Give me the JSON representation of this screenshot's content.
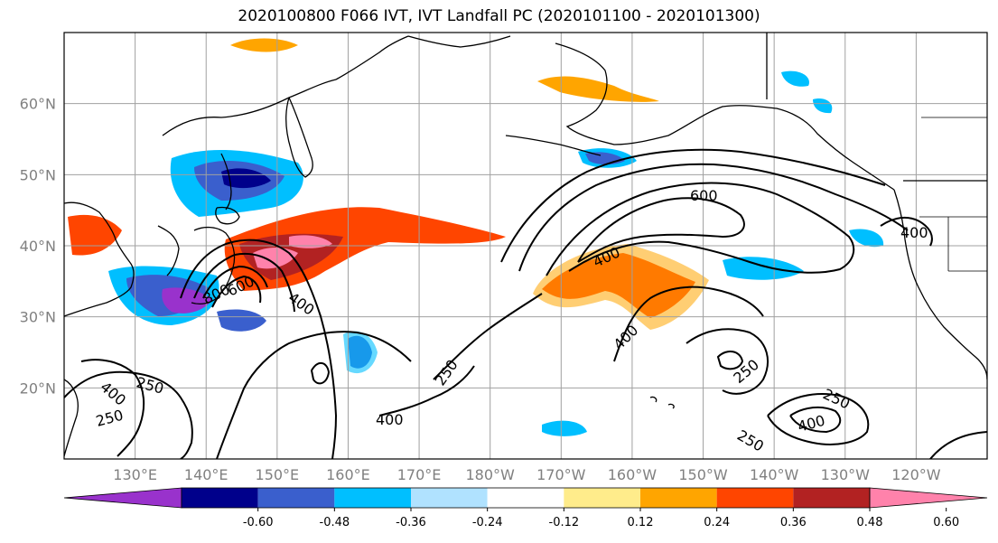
{
  "title": "2020100800 F066 IVT, IVT Landfall PC (2020101100 - 2020101300)",
  "map": {
    "lat_ticks": [
      {
        "label": "60°N",
        "lat": 60
      },
      {
        "label": "50°N",
        "lat": 50
      },
      {
        "label": "40°N",
        "lat": 40
      },
      {
        "label": "30°N",
        "lat": 30
      },
      {
        "label": "20°N",
        "lat": 20
      }
    ],
    "lon_ticks": [
      {
        "label": "130°E",
        "lon": 130
      },
      {
        "label": "140°E",
        "lon": 140
      },
      {
        "label": "150°E",
        "lon": 150
      },
      {
        "label": "160°E",
        "lon": 160
      },
      {
        "label": "170°E",
        "lon": 170
      },
      {
        "label": "180°W",
        "lon": 180
      },
      {
        "label": "170°W",
        "lon": 190
      },
      {
        "label": "160°W",
        "lon": 200
      },
      {
        "label": "150°W",
        "lon": 210
      },
      {
        "label": "140°W",
        "lon": 220
      },
      {
        "label": "130°W",
        "lon": 230
      },
      {
        "label": "120°W",
        "lon": 240
      }
    ],
    "lon_range": [
      120,
      250
    ],
    "lat_range": [
      10,
      70
    ],
    "contour_labels": [
      "250",
      "400",
      "600",
      "800"
    ]
  },
  "colorbar": {
    "colors": [
      "#9932CC",
      "#00008B",
      "#3A5FCD",
      "#00BFFF",
      "#B0E2FF",
      "#FFFFFF",
      "#FFEC8B",
      "#FFA500",
      "#FF4500",
      "#B22222",
      "#FF82AB"
    ],
    "tick_labels": [
      "-0.60",
      "-0.48",
      "-0.36",
      "-0.24",
      "-0.12",
      "0.12",
      "0.24",
      "0.36",
      "0.48",
      "0.60"
    ]
  },
  "colors": {
    "land_outline": "#000000",
    "grid": "#a0a0a0",
    "contour": "#000000"
  }
}
